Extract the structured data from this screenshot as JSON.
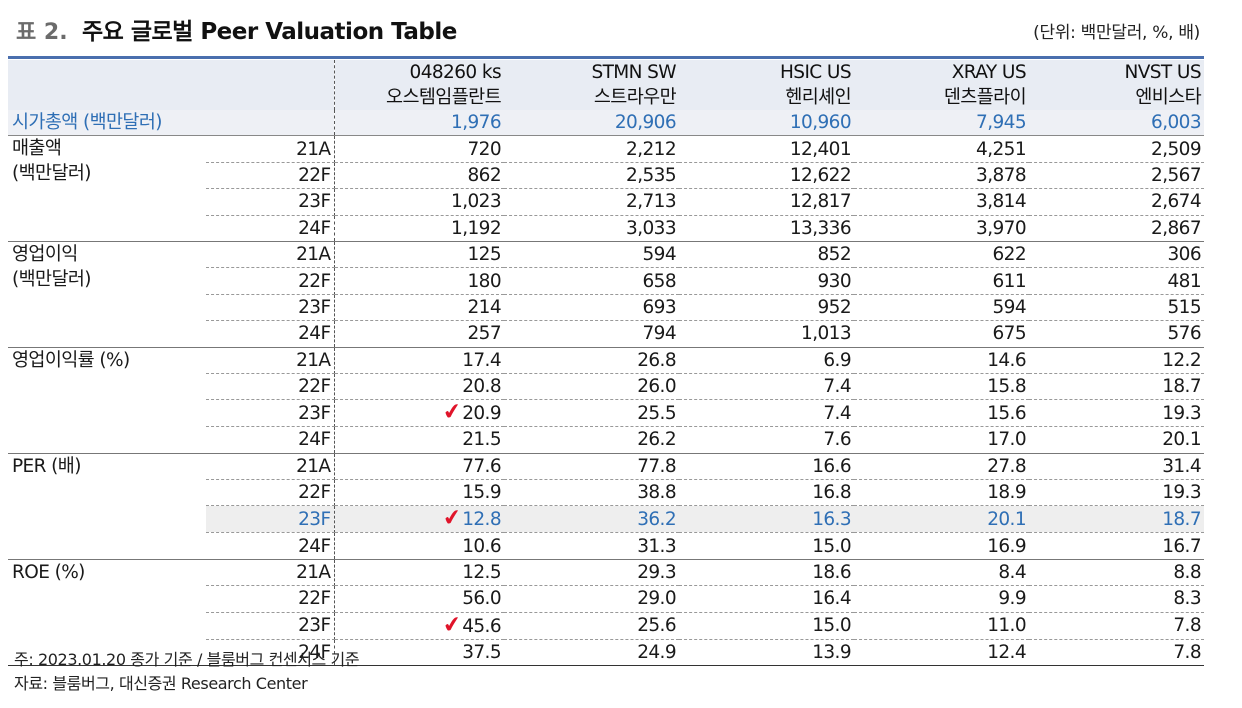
{
  "header": {
    "prefix": "표 2.",
    "title": "주요 글로벌 Peer Valuation Table",
    "unit": "(단위: 백만달러, %, 배)"
  },
  "columns": [
    {
      "ticker": "048260 ks",
      "name": "오스템임플란트"
    },
    {
      "ticker": "STMN SW",
      "name": "스트라우만"
    },
    {
      "ticker": "HSIC US",
      "name": "헨리셰인"
    },
    {
      "ticker": "XRAY US",
      "name": "덴츠플라이"
    },
    {
      "ticker": "NVST US",
      "name": "엔비스타"
    }
  ],
  "market_cap": {
    "label": "시가총액 (백만달러)",
    "values": [
      "1,976",
      "20,906",
      "10,960",
      "7,945",
      "6,003"
    ]
  },
  "groups": [
    {
      "label_line1": "매출액",
      "label_line2": "(백만달러)",
      "rows": [
        {
          "period": "21A",
          "values": [
            "720",
            "2,212",
            "12,401",
            "4,251",
            "2,509"
          ]
        },
        {
          "period": "22F",
          "values": [
            "862",
            "2,535",
            "12,622",
            "3,878",
            "2,567"
          ]
        },
        {
          "period": "23F",
          "values": [
            "1,023",
            "2,713",
            "12,817",
            "3,814",
            "2,674"
          ]
        },
        {
          "period": "24F",
          "values": [
            "1,192",
            "3,033",
            "13,336",
            "3,970",
            "2,867"
          ]
        }
      ]
    },
    {
      "label_line1": "영업이익",
      "label_line2": "(백만달러)",
      "rows": [
        {
          "period": "21A",
          "values": [
            "125",
            "594",
            "852",
            "622",
            "306"
          ]
        },
        {
          "period": "22F",
          "values": [
            "180",
            "658",
            "930",
            "611",
            "481"
          ]
        },
        {
          "period": "23F",
          "values": [
            "214",
            "693",
            "952",
            "594",
            "515"
          ]
        },
        {
          "period": "24F",
          "values": [
            "257",
            "794",
            "1,013",
            "675",
            "576"
          ]
        }
      ]
    },
    {
      "label_line1": "영업이익률 (%)",
      "label_line2": "",
      "rows": [
        {
          "period": "21A",
          "values": [
            "17.4",
            "26.8",
            "6.9",
            "14.6",
            "12.2"
          ]
        },
        {
          "period": "22F",
          "values": [
            "20.8",
            "26.0",
            "7.4",
            "15.8",
            "18.7"
          ]
        },
        {
          "period": "23F",
          "values": [
            "20.9",
            "25.5",
            "7.4",
            "15.6",
            "19.3"
          ]
        },
        {
          "period": "24F",
          "values": [
            "21.5",
            "26.2",
            "7.6",
            "17.0",
            "20.1"
          ]
        }
      ]
    },
    {
      "label_line1": "PER (배)",
      "label_line2": "",
      "rows": [
        {
          "period": "21A",
          "values": [
            "77.6",
            "77.8",
            "16.6",
            "27.8",
            "31.4"
          ]
        },
        {
          "period": "22F",
          "values": [
            "15.9",
            "38.8",
            "16.8",
            "18.9",
            "19.3"
          ]
        },
        {
          "period": "23F",
          "values": [
            "12.8",
            "36.2",
            "16.3",
            "20.1",
            "18.7"
          ]
        },
        {
          "period": "24F",
          "values": [
            "10.6",
            "31.3",
            "15.0",
            "16.9",
            "16.7"
          ]
        }
      ]
    },
    {
      "label_line1": "ROE (%)",
      "label_line2": "",
      "rows": [
        {
          "period": "21A",
          "values": [
            "12.5",
            "29.3",
            "18.6",
            "8.4",
            "8.8"
          ]
        },
        {
          "period": "22F",
          "values": [
            "56.0",
            "29.0",
            "16.4",
            "9.9",
            "8.3"
          ]
        },
        {
          "period": "23F",
          "values": [
            "45.6",
            "25.6",
            "15.0",
            "11.0",
            "7.8"
          ]
        },
        {
          "period": "24F",
          "values": [
            "37.5",
            "24.9",
            "13.9",
            "12.4",
            "7.8"
          ]
        }
      ]
    }
  ],
  "check_mark": "✔",
  "check_color": "#e0142a",
  "highlight_color": "#2f6fb5",
  "footnotes": {
    "note": "주: 2023.01.20 종가 기준 / 블룸버그 컨센서스 기준",
    "source": "자료: 블룸버그, 대신증권 Research Center"
  }
}
